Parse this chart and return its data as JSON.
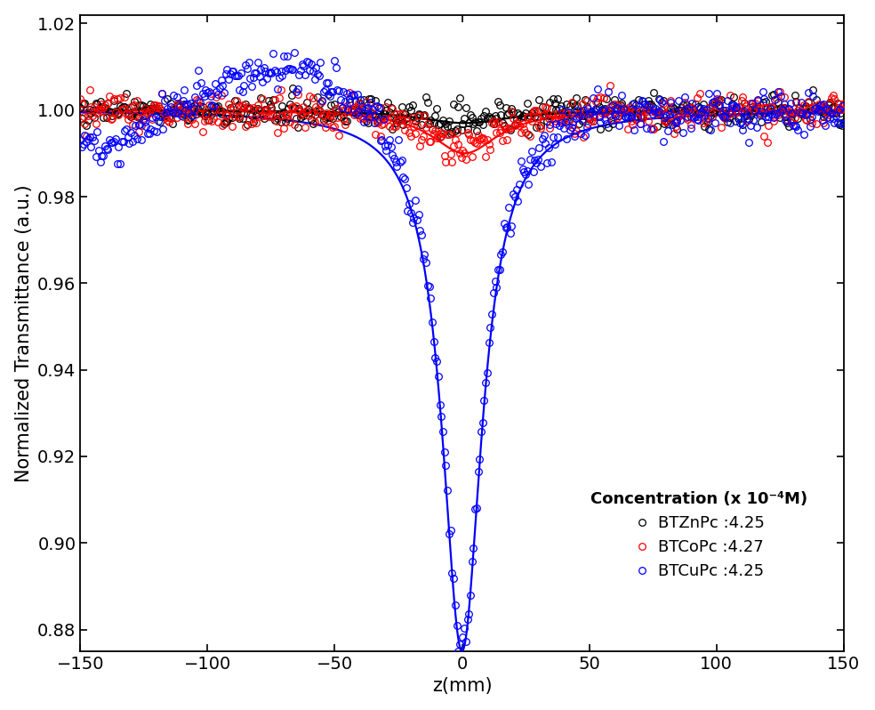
{
  "title": "",
  "xlabel": "z(mm)",
  "ylabel": "Normalized Transmittance (a.u.)",
  "xlim": [
    -150,
    150
  ],
  "ylim": [
    0.875,
    1.022
  ],
  "xticks": [
    -150,
    -100,
    -50,
    0,
    50,
    100,
    150
  ],
  "yticks": [
    0.88,
    0.9,
    0.92,
    0.94,
    0.96,
    0.98,
    1.0,
    1.02
  ],
  "legend_title": "Concentration (x 10⁻⁴M)",
  "legend_entries": [
    "BTZnPc :4.25",
    "BTCoPc :4.27",
    "BTCuPc :4.25"
  ],
  "colors": [
    "black",
    "red",
    "blue"
  ],
  "background_color": "#ffffff",
  "seed": 42,
  "n_points": 500,
  "marker_size": 5.5,
  "line_width": 1.6,
  "font_size": 15,
  "tick_font_size": 14,
  "legend_font_size": 13
}
